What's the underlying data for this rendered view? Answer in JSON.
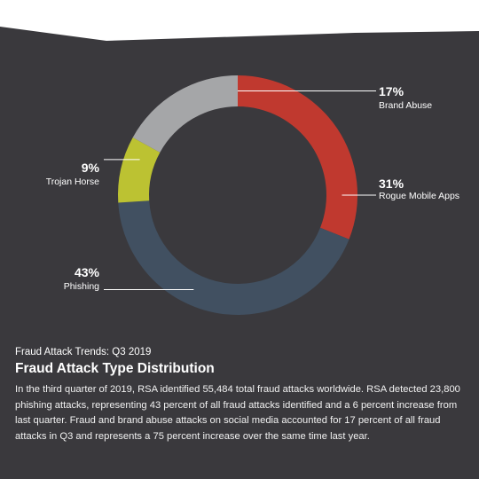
{
  "colors": {
    "background": "#3a393d",
    "top_band": "#ffffff",
    "rogue_mobile_apps": "#c0392f",
    "phishing": "#415061",
    "trojan_horse": "#bcc232",
    "brand_abuse": "#a5a6a8",
    "text": "#ffffff"
  },
  "chart_data": {
    "type": "pie",
    "donut": true,
    "title": "",
    "slices": [
      {
        "label": "Rogue Mobile Apps",
        "value": 31,
        "display": "31%",
        "color": "#c0392f"
      },
      {
        "label": "Phishing",
        "value": 43,
        "display": "43%",
        "color": "#415061"
      },
      {
        "label": "Trojan Horse",
        "value": 9,
        "display": "9%",
        "color": "#bcc232"
      },
      {
        "label": "Brand Abuse",
        "value": 17,
        "display": "17%",
        "color": "#a5a6a8"
      }
    ]
  },
  "caption": {
    "kicker": "Fraud Attack Trends: Q3 2019",
    "heading": "Fraud Attack Type Distribution",
    "body": "In the third quarter of 2019, RSA identified 55,484 total fraud attacks worldwide. RSA detected 23,800 phishing attacks, representing 43 percent of all fraud attacks identified and a 6 percent increase from last quarter. Fraud and brand abuse attacks on social media accounted for 17 percent of all fraud attacks in Q3 and represents a 75 percent increase over the same time last year."
  }
}
